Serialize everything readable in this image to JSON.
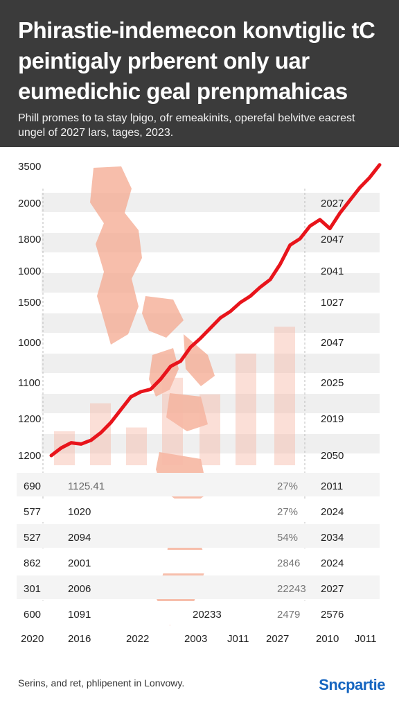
{
  "header": {
    "title": "Phirastie-indemecon konvtiglic tC peintigaly prberent only uar eumedichic geal prenpmahicas",
    "subtitle": "Phill promes to ta stay lpigo, ofr emeakinits, operefal belvitve eacrest ungel of 2027 lars, tages, 2023."
  },
  "colors": {
    "line": "#e8141b",
    "bars": "#f7b8a6",
    "map": "#f4a88f",
    "stripe": "#efefef",
    "brand": "#1565c0"
  },
  "chart_data": {
    "type": "line",
    "left_axis_labels": [
      "3500",
      "2000",
      "1800",
      "1000",
      "1500",
      "1000",
      "1100",
      "1200",
      "1200"
    ],
    "right_axis_labels": [
      "2027",
      "2047",
      "2041",
      "1027",
      "2047",
      "2025",
      "2019",
      "2050"
    ],
    "x_tick_labels": [
      "2020",
      "2016",
      "2022",
      "2003",
      "J011",
      "2027",
      "2010",
      "J011"
    ],
    "series": [
      {
        "values": [
          1200,
          1260,
          1300,
          1290,
          1320,
          1380,
          1460,
          1560,
          1660,
          1700,
          1720,
          1800,
          1900,
          1940,
          2050,
          2120,
          2200,
          2280,
          2330,
          2400,
          2450,
          2520,
          2580,
          2700,
          2850,
          2900,
          3000,
          3050,
          2980,
          3100,
          3200,
          3300,
          3380,
          3480
        ]
      }
    ],
    "bars": [
      1390,
      1610,
      1420,
      1810,
      1680,
      2000,
      2210,
      1860,
      2270,
      2390
    ],
    "table": {
      "rows": [
        [
          "690",
          "1125.41",
          "",
          "27%",
          "2011"
        ],
        [
          "577",
          "1020",
          "",
          "27%",
          "2024"
        ],
        [
          "527",
          "2094",
          "",
          "54%",
          "2034"
        ],
        [
          "862",
          "2001",
          "",
          "2846",
          "2024"
        ],
        [
          "301",
          "2006",
          "",
          "22243",
          "2027"
        ],
        [
          "600",
          "1091",
          "20233",
          "2479",
          "2576"
        ]
      ]
    }
  },
  "footer": {
    "note": "Serins, and ret, phlipenent in Lonvowy.",
    "brand": "Sncpartie"
  }
}
